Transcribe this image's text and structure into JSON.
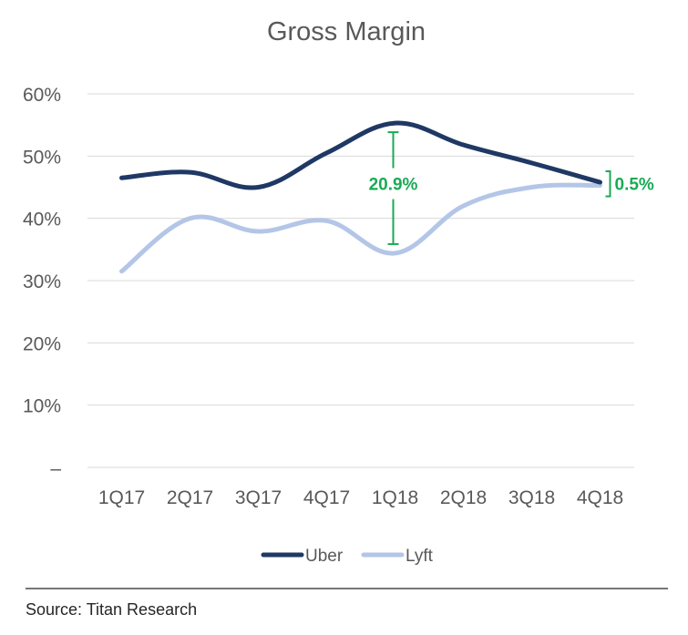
{
  "chart_data": {
    "type": "line",
    "title": "Gross Margin",
    "xlabel": "",
    "ylabel": "",
    "categories": [
      "1Q17",
      "2Q17",
      "3Q17",
      "4Q17",
      "1Q18",
      "2Q18",
      "3Q18",
      "4Q18"
    ],
    "ylim": [
      0,
      60
    ],
    "yticks": [
      0,
      10,
      20,
      30,
      40,
      50,
      60
    ],
    "ytick_labels": [
      "–",
      "10%",
      "20%",
      "30%",
      "40%",
      "50%",
      "60%"
    ],
    "grid": true,
    "legend": "bottom",
    "series": [
      {
        "name": "Uber",
        "color": "#1f3864",
        "values": [
          46.5,
          47.4,
          45.0,
          50.5,
          55.3,
          51.8,
          48.9,
          45.8
        ]
      },
      {
        "name": "Lyft",
        "color": "#b4c6e7",
        "values": [
          31.5,
          40.0,
          37.9,
          39.6,
          34.4,
          42.0,
          45.0,
          45.3
        ]
      }
    ],
    "annotations": [
      {
        "text": "20.9%",
        "category": "1Q18",
        "from": 34.4,
        "to": 55.3,
        "color": "#1aaa55"
      },
      {
        "text": "0.5%",
        "category": "4Q18",
        "from": 45.3,
        "to": 45.8,
        "color": "#1aaa55"
      }
    ]
  },
  "source": "Source: Titan Research"
}
